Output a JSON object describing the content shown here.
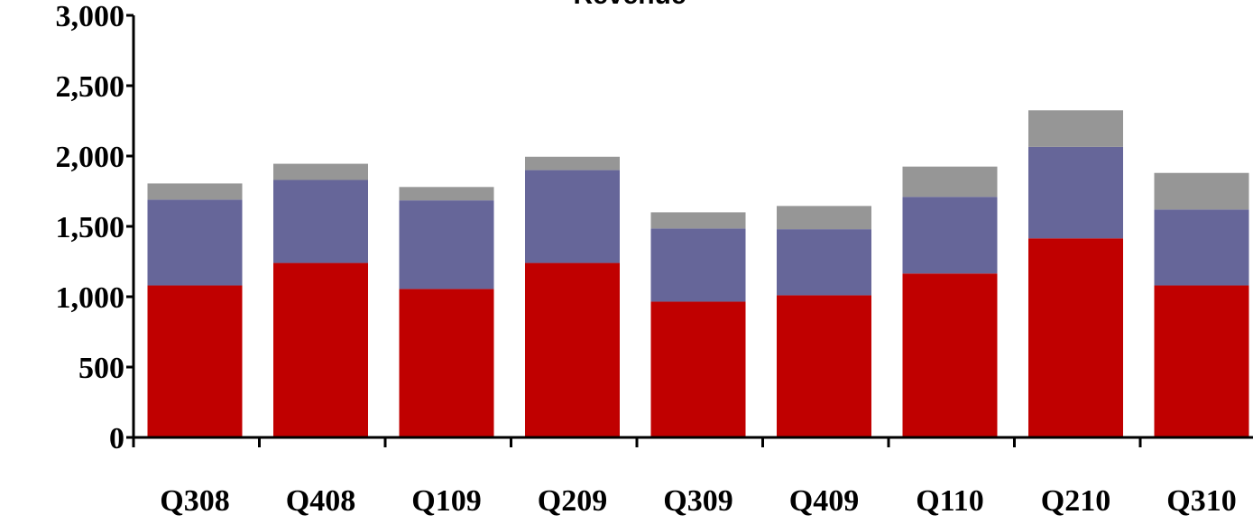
{
  "chart_data": {
    "type": "bar",
    "stacked": true,
    "title": "Revenue",
    "xlabel": "",
    "ylabel": "",
    "ylim": [
      0,
      3000
    ],
    "y_ticks": [
      0,
      500,
      1000,
      1500,
      2000,
      2500,
      3000
    ],
    "y_tick_labels": [
      "0",
      "500",
      "1,000",
      "1,500",
      "2,000",
      "2,500",
      "3,000"
    ],
    "categories": [
      "Q308",
      "Q408",
      "Q109",
      "Q209",
      "Q309",
      "Q409",
      "Q110",
      "Q210",
      "Q310"
    ],
    "series": [
      {
        "color": "#c00000",
        "values": [
          1080,
          1240,
          1055,
          1240,
          965,
          1010,
          1165,
          1415,
          1080
        ]
      },
      {
        "color": "#666699",
        "values": [
          610,
          590,
          630,
          660,
          520,
          470,
          545,
          650,
          540
        ]
      },
      {
        "color": "#969696",
        "values": [
          115,
          115,
          95,
          95,
          115,
          165,
          215,
          260,
          260
        ]
      }
    ],
    "grid": false,
    "legend": "none"
  }
}
